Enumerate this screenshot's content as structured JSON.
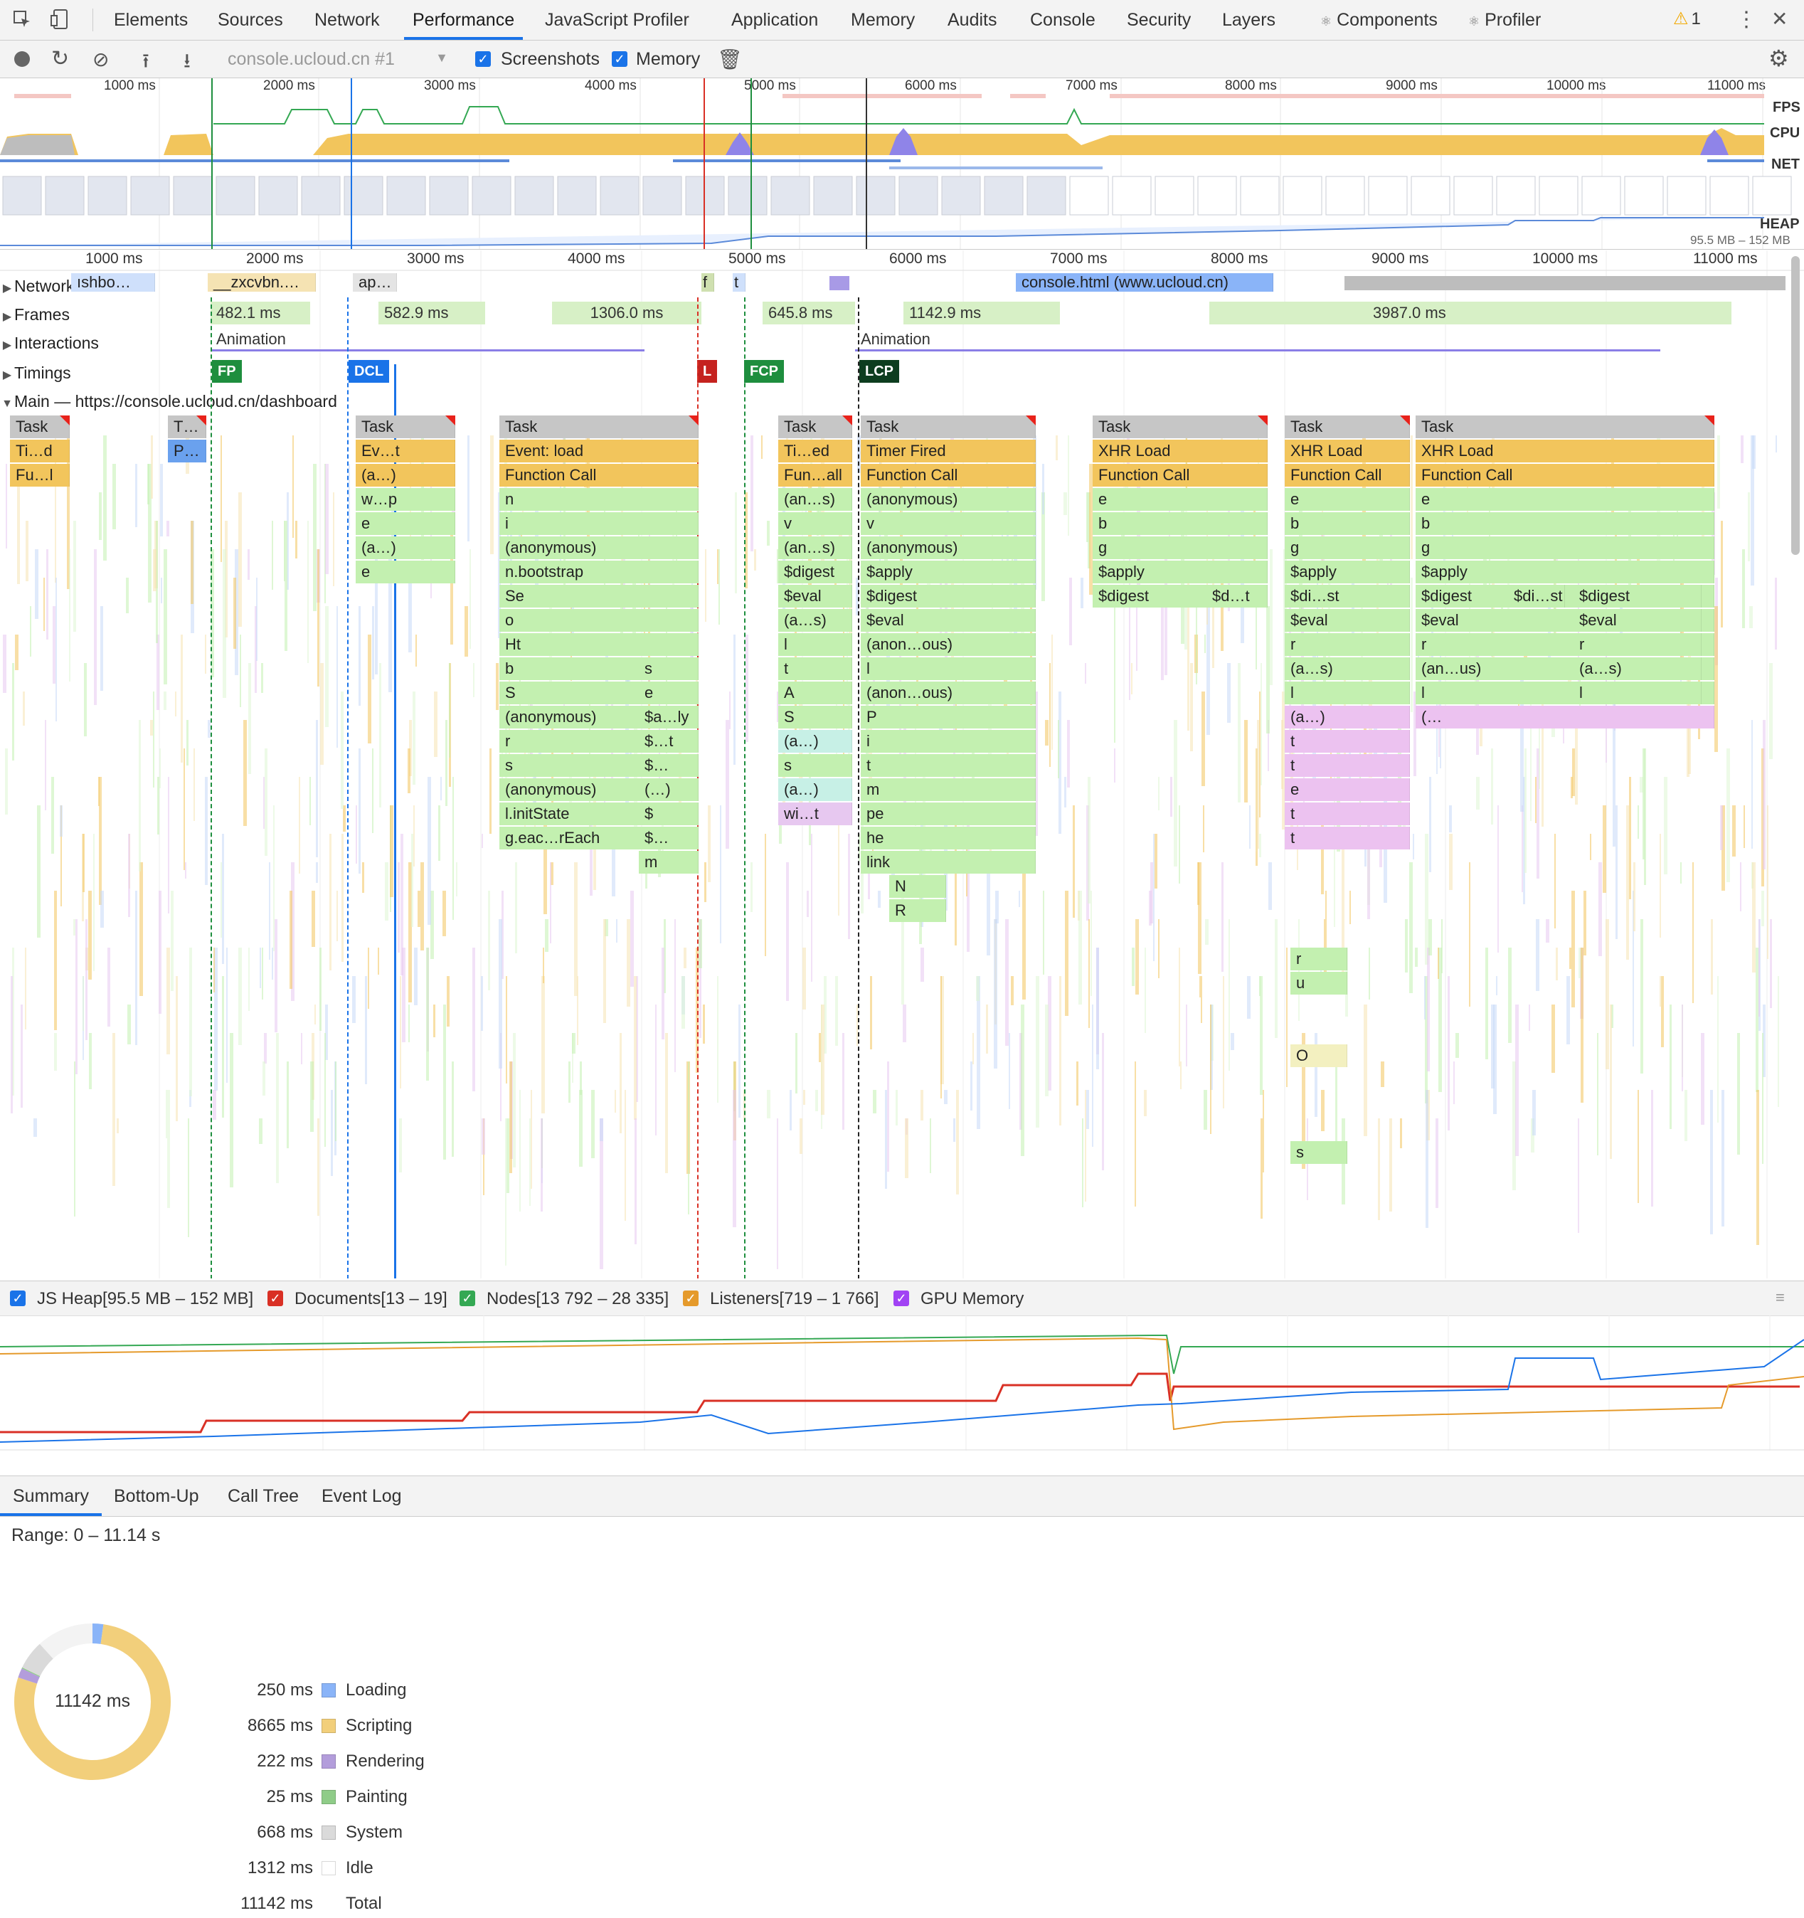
{
  "tabs": [
    "Elements",
    "Sources",
    "Network",
    "Performance",
    "JavaScript Profiler",
    "Application",
    "Memory",
    "Audits",
    "Console",
    "Security",
    "Layers",
    "Components",
    "Profiler"
  ],
  "active_tab": "Performance",
  "warning_count": "1",
  "toolbar": {
    "target": "console.ucloud.cn #1",
    "screenshots_label": "Screenshots",
    "memory_label": "Memory"
  },
  "overview": {
    "ticks": [
      "1000 ms",
      "2000 ms",
      "3000 ms",
      "4000 ms",
      "5000 ms",
      "6000 ms",
      "7000 ms",
      "8000 ms",
      "9000 ms",
      "10000 ms",
      "11000 ms"
    ],
    "labels": {
      "fps": "FPS",
      "cpu": "CPU",
      "net": "NET",
      "heap": "HEAP",
      "heap_range": "95.5 MB – 152 MB"
    }
  },
  "ruler": [
    "1000 ms",
    "2000 ms",
    "3000 ms",
    "4000 ms",
    "5000 ms",
    "6000 ms",
    "7000 ms",
    "8000 ms",
    "9000 ms",
    "10000 ms",
    "11000 ms"
  ],
  "tracks": {
    "network": "Network",
    "frames": "Frames",
    "interactions": "Interactions",
    "timings": "Timings",
    "main": "Main — https://console.ucloud.cn/dashboard"
  },
  "network_items": [
    "ıshbo…",
    "__zxcvbn.…",
    "ap…",
    "f",
    "t",
    "console.html (www.ucloud.cn)"
  ],
  "frames": [
    "482.1 ms",
    "582.9 ms",
    "1306.0 ms",
    "645.8 ms",
    "1142.9 ms",
    "3987.0 ms"
  ],
  "interactions": [
    "Animation",
    "Animation"
  ],
  "timings": [
    "FP",
    "DCL",
    "L",
    "FCP",
    "LCP"
  ],
  "columns": [
    {
      "rows": [
        "Task",
        "Ti…d",
        "Fu…l"
      ]
    },
    {
      "rows": [
        "T…",
        "P…"
      ]
    },
    {
      "rows": [
        "Task",
        "Ev…t",
        "(a…)",
        "w…p",
        "e",
        "(a…)",
        "e"
      ]
    },
    {
      "rows": [
        "Task",
        "Event: load",
        "Function Call",
        "n",
        "i",
        "(anonymous)",
        "n.bootstrap",
        "Se",
        "o",
        "Ht",
        "b",
        "S",
        "(anonymous)",
        "r",
        "s",
        "(anonymous)",
        "l.initState",
        "g.eac…rEach"
      ]
    },
    {
      "rows": [
        "s",
        "e",
        "$a…ly",
        "$…t",
        "$…",
        "(…)",
        "$",
        "$…",
        "m"
      ]
    },
    {
      "rows": [
        "Task",
        "Ti…ed",
        "Fun…all",
        "(an…s)",
        "v",
        "(an…s)",
        "$digest",
        "$eval",
        "(a…s)",
        "l",
        "t",
        "A",
        "S",
        "(a…)",
        "s",
        "(a…)",
        "wi…t"
      ]
    },
    {
      "rows": [
        "Task",
        "Timer Fired",
        "Function Call",
        "(anonymous)",
        "v",
        "(anonymous)",
        "$apply",
        "$digest",
        "$eval",
        "(anon…ous)",
        "l",
        "(anon…ous)",
        "P",
        "i",
        "t",
        "m",
        "pe",
        "he",
        "link",
        "N",
        "R"
      ]
    },
    {
      "rows": [
        "Task",
        "XHR Load",
        "Function Call",
        "e",
        "b",
        "g",
        "$apply",
        "$digest"
      ]
    },
    {
      "rows": [
        "$d…t"
      ]
    },
    {
      "rows": [
        "Task",
        "XHR Load",
        "Function Call",
        "e",
        "b",
        "g",
        "$apply",
        "$di…st",
        "$eval",
        "r",
        "(a…s)",
        "l",
        "(a…)",
        "t",
        "t",
        "e",
        "t",
        "t"
      ]
    },
    {
      "rows": [
        "r",
        "u",
        "O",
        "s"
      ]
    },
    {
      "rows": [
        "Task",
        "XHR Load",
        "Function Call",
        "e",
        "b",
        "g",
        "$apply",
        "$digest",
        "$eval",
        "r",
        "(an…us)",
        "l",
        "(…"
      ]
    },
    {
      "rows": [
        "$di…st"
      ]
    },
    {
      "rows": [
        "$digest",
        "$eval",
        "r",
        "(a…s)",
        "l"
      ]
    }
  ],
  "memory_legend": [
    {
      "label": "JS Heap[95.5 MB – 152 MB]",
      "color": "#1a73e8"
    },
    {
      "label": "Documents[13 – 19]",
      "color": "#d93025"
    },
    {
      "label": "Nodes[13 792 – 28 335]",
      "color": "#34a853"
    },
    {
      "label": "Listeners[719 – 1 766]",
      "color": "#e59a2b"
    },
    {
      "label": "GPU Memory",
      "color": "#a142f4"
    }
  ],
  "bottom_tabs": [
    "Summary",
    "Bottom-Up",
    "Call Tree",
    "Event Log"
  ],
  "summary": {
    "range": "Range: 0 – 11.14 s",
    "total_center": "11142 ms",
    "rows": [
      {
        "value": "250 ms",
        "label": "Loading",
        "color": "#8ab4f8"
      },
      {
        "value": "8665 ms",
        "label": "Scripting",
        "color": "#f2cf7b"
      },
      {
        "value": "222 ms",
        "label": "Rendering",
        "color": "#b39ddb"
      },
      {
        "value": "25 ms",
        "label": "Painting",
        "color": "#8fcc88"
      },
      {
        "value": "668 ms",
        "label": "System",
        "color": "#dadada"
      },
      {
        "value": "1312 ms",
        "label": "Idle",
        "color": "#ffffff"
      },
      {
        "value": "11142 ms",
        "label": "Total",
        "color": ""
      }
    ],
    "pie": [
      250,
      8665,
      222,
      25,
      668,
      1312
    ]
  }
}
